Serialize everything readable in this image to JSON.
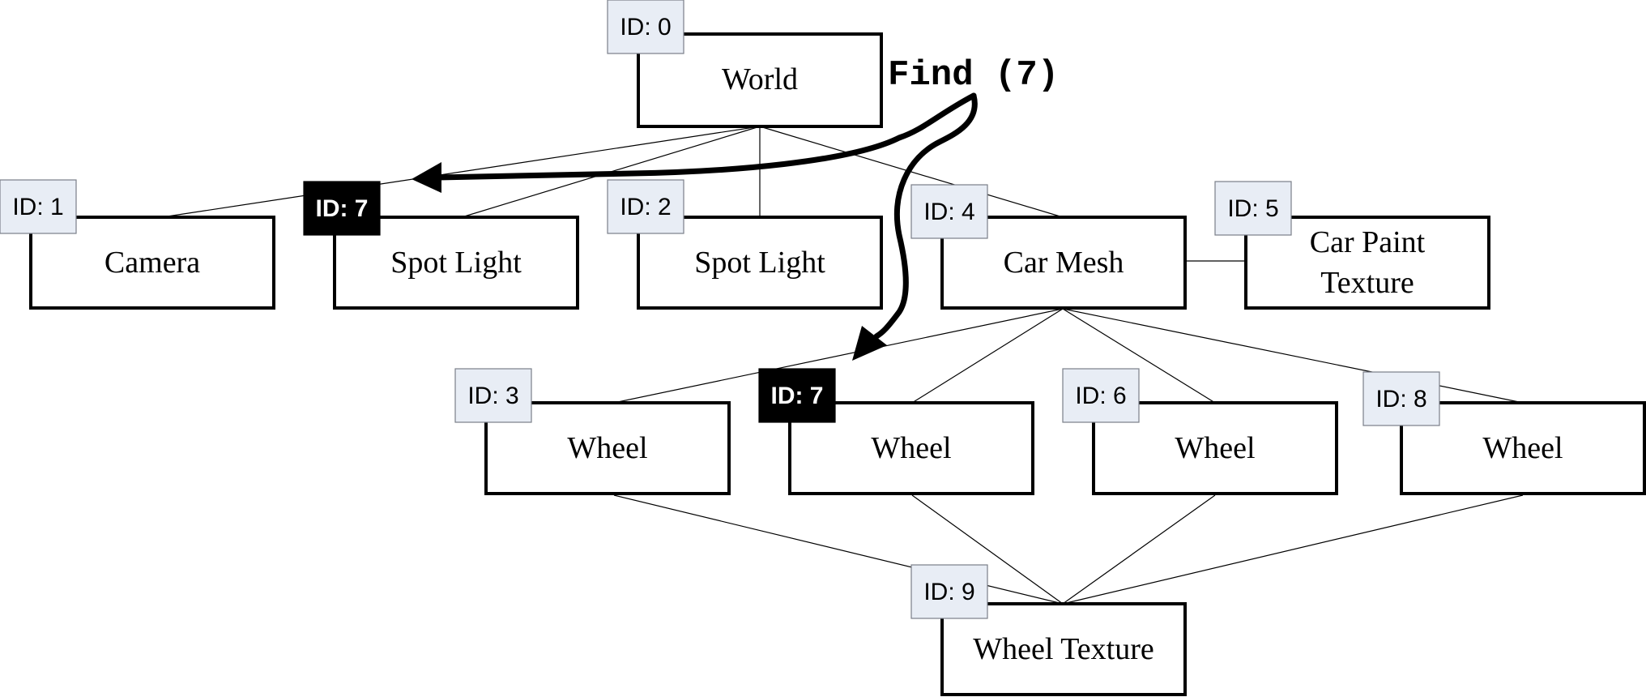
{
  "query": {
    "label": "Find (7)"
  },
  "nodes": [
    {
      "key": "world",
      "name": "World",
      "id": "ID: 0",
      "highlight": false
    },
    {
      "key": "camera",
      "name": "Camera",
      "id": "ID: 1",
      "highlight": false
    },
    {
      "key": "spot-light-a",
      "name": "Spot Light",
      "id": "ID: 7",
      "highlight": true
    },
    {
      "key": "spot-light-b",
      "name": "Spot Light",
      "id": "ID: 2",
      "highlight": false
    },
    {
      "key": "car-mesh",
      "name": "Car Mesh",
      "id": "ID: 4",
      "highlight": false
    },
    {
      "key": "car-paint-texture",
      "name": "Car Paint Texture",
      "lines": [
        "Car Paint",
        "Texture"
      ],
      "id": "ID: 5",
      "highlight": false
    },
    {
      "key": "wheel-a",
      "name": "Wheel",
      "id": "ID: 3",
      "highlight": false
    },
    {
      "key": "wheel-b",
      "name": "Wheel",
      "id": "ID: 7",
      "highlight": true
    },
    {
      "key": "wheel-c",
      "name": "Wheel",
      "id": "ID: 6",
      "highlight": false
    },
    {
      "key": "wheel-d",
      "name": "Wheel",
      "id": "ID: 8",
      "highlight": false
    },
    {
      "key": "wheel-texture",
      "name": "Wheel Texture",
      "id": "ID: 9",
      "highlight": false
    }
  ],
  "edges": [
    [
      "world",
      "camera"
    ],
    [
      "world",
      "spot-light-a"
    ],
    [
      "world",
      "spot-light-b"
    ],
    [
      "world",
      "car-mesh"
    ],
    [
      "car-mesh",
      "car-paint-texture"
    ],
    [
      "car-mesh",
      "wheel-a"
    ],
    [
      "car-mesh",
      "wheel-b"
    ],
    [
      "car-mesh",
      "wheel-c"
    ],
    [
      "car-mesh",
      "wheel-d"
    ],
    [
      "wheel-a",
      "wheel-texture"
    ],
    [
      "wheel-b",
      "wheel-texture"
    ],
    [
      "wheel-c",
      "wheel-texture"
    ],
    [
      "wheel-d",
      "wheel-texture"
    ]
  ]
}
